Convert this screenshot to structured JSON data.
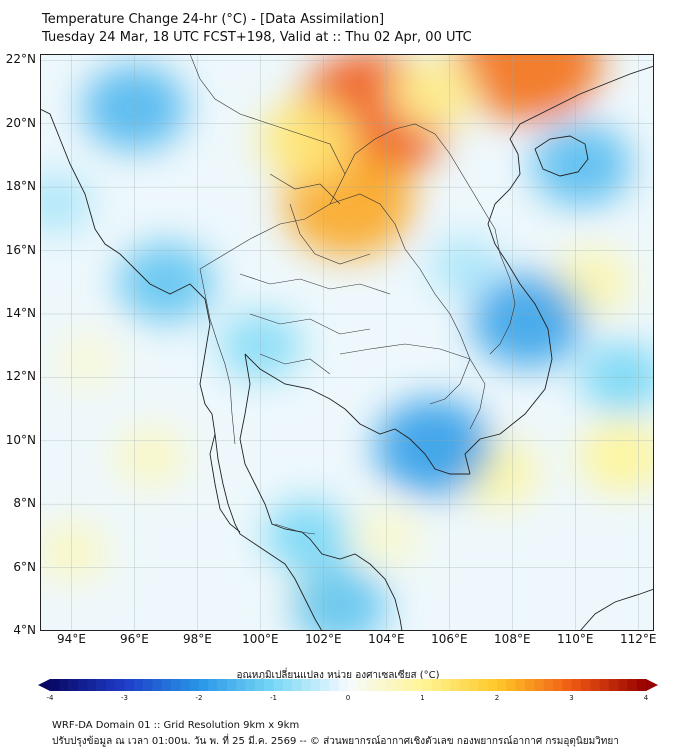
{
  "header": {
    "title": "Temperature Change 24-hr (°C) - [Data Assimilation]",
    "subtitle": "Tuesday 24 Mar, 18 UTC FCST+198, Valid at :: Thu 02 Apr, 00 UTC"
  },
  "map": {
    "lat_labels": [
      "22°N",
      "20°N",
      "18°N",
      "16°N",
      "14°N",
      "12°N",
      "10°N",
      "8°N",
      "6°N",
      "4°N"
    ],
    "lon_labels": [
      "94°E",
      "96°E",
      "98°E",
      "100°E",
      "102°E",
      "104°E",
      "106°E",
      "108°E",
      "110°E",
      "112°E"
    ],
    "lat_values": [
      22,
      20,
      18,
      16,
      14,
      12,
      10,
      8,
      6,
      4
    ],
    "lon_values": [
      94,
      96,
      98,
      100,
      102,
      104,
      106,
      108,
      110,
      112
    ],
    "extent": {
      "lon_min": 93,
      "lon_max": 112.5,
      "lat_min": 4,
      "lat_max": 22.2
    },
    "anomalies": [
      {
        "lon": 103.6,
        "lat": 20.3,
        "value": 3.0
      },
      {
        "lon": 102.8,
        "lat": 17.5,
        "value": 2.3
      },
      {
        "lon": 108.5,
        "lat": 22.0,
        "value": 2.8
      },
      {
        "lon": 101.5,
        "lat": 19.5,
        "value": 1.3
      },
      {
        "lon": 105.5,
        "lat": 21.0,
        "value": 1.0
      },
      {
        "lon": 110.5,
        "lat": 15.0,
        "value": 0.8
      },
      {
        "lon": 107.5,
        "lat": 9.0,
        "value": 0.9
      },
      {
        "lon": 111.5,
        "lat": 9.5,
        "value": 1.0
      },
      {
        "lon": 96.5,
        "lat": 9.5,
        "value": 0.6
      },
      {
        "lon": 94.0,
        "lat": 6.5,
        "value": 0.6
      },
      {
        "lon": 102.0,
        "lat": 5.0,
        "value": 0.6
      },
      {
        "lon": 104.0,
        "lat": 7.0,
        "value": 0.5
      },
      {
        "lon": 94.5,
        "lat": 12.5,
        "value": 0.4
      },
      {
        "lon": 96.0,
        "lat": 20.5,
        "value": -1.5
      },
      {
        "lon": 110.2,
        "lat": 18.7,
        "value": -1.4
      },
      {
        "lon": 97.0,
        "lat": 15.0,
        "value": -1.3
      },
      {
        "lon": 108.5,
        "lat": 13.8,
        "value": -1.8
      },
      {
        "lon": 105.5,
        "lat": 9.8,
        "value": -1.9
      },
      {
        "lon": 101.5,
        "lat": 7.0,
        "value": -1.0
      },
      {
        "lon": 102.5,
        "lat": 4.8,
        "value": -1.3
      },
      {
        "lon": 100.0,
        "lat": 13.0,
        "value": -0.9
      },
      {
        "lon": 93.5,
        "lat": 17.5,
        "value": -0.6
      },
      {
        "lon": 111.5,
        "lat": 12.0,
        "value": -1.0
      },
      {
        "lon": 106.5,
        "lat": 15.5,
        "value": -0.6
      }
    ]
  },
  "colorbar": {
    "title": "อุณหภูมิเปลี่ยนแปลง หน่วย องศาเซลเซียส (°C)",
    "ticks": [
      "-4",
      "-3",
      "-2",
      "-1",
      "0",
      "1",
      "2",
      "3",
      "4"
    ],
    "min": -4,
    "max": 4
  },
  "footer": {
    "line1": "WRF-DA Domain 01 :: Grid Resolution 9km x 9km",
    "line2": "ปรับปรุงข้อมูล ณ เวลา 01:00น. วัน พ. ที่ 25 มี.ค. 2569 -- © ส่วนพยากรณ์อากาศเชิงตัวเลข กองพยากรณ์อากาศ กรมอุตุนิยมวิทยา"
  }
}
